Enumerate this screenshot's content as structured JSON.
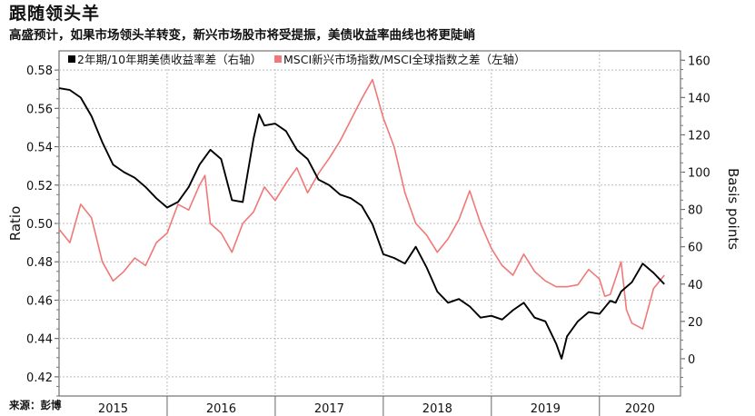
{
  "title": "跟随领头羊",
  "subtitle": "高盛预计，如果市场领头羊转变，新兴市场股市将受提振，美债收益率曲线也将更陡峭",
  "source": "来源：彭博",
  "chart_data": {
    "type": "line",
    "legend_position": "top",
    "grid": true,
    "x_ticks": [
      "2015",
      "2016",
      "2017",
      "2018",
      "2019",
      "2020"
    ],
    "left_axis": {
      "label": "Ratio",
      "ylim": [
        0.41,
        0.59
      ],
      "ticks": [
        "0.58",
        "0.56",
        "0.54",
        "0.52",
        "0.50",
        "0.48",
        "0.46",
        "0.44",
        "0.42"
      ]
    },
    "right_axis": {
      "label": "Basis points",
      "ylim": [
        -20,
        165
      ],
      "ticks": [
        "160",
        "140",
        "120",
        "100",
        "80",
        "60",
        "40",
        "20",
        "0"
      ]
    },
    "series": [
      {
        "name": "2年期/10年期美债收益率差（右轴）",
        "axis": "right",
        "color": "#000000",
        "x": [
          2015.0,
          2015.1,
          2015.2,
          2015.3,
          2015.4,
          2015.5,
          2015.6,
          2015.7,
          2015.8,
          2015.9,
          2016.0,
          2016.1,
          2016.2,
          2016.3,
          2016.4,
          2016.5,
          2016.6,
          2016.7,
          2016.8,
          2016.85,
          2016.9,
          2017.0,
          2017.1,
          2017.2,
          2017.3,
          2017.4,
          2017.5,
          2017.6,
          2017.7,
          2017.8,
          2017.9,
          2018.0,
          2018.1,
          2018.2,
          2018.3,
          2018.4,
          2018.5,
          2018.6,
          2018.7,
          2018.8,
          2018.9,
          2019.0,
          2019.1,
          2019.2,
          2019.3,
          2019.4,
          2019.5,
          2019.6,
          2019.65,
          2019.7,
          2019.8,
          2019.9,
          2020.0,
          2020.1,
          2020.15,
          2020.2,
          2020.3,
          2020.4,
          2020.5,
          2020.6
        ],
        "y": [
          145,
          144,
          140,
          130,
          116,
          104,
          100,
          97,
          92,
          86,
          81,
          84,
          92,
          104,
          112,
          107,
          85,
          84,
          118,
          131,
          125,
          126,
          122,
          112,
          107,
          96,
          93,
          88,
          86,
          82,
          72,
          56,
          54,
          51,
          60,
          49,
          36,
          30,
          32,
          28,
          22,
          23,
          21,
          26,
          30,
          22,
          20,
          8,
          0,
          12,
          20,
          25,
          24,
          31,
          30,
          36,
          41,
          51,
          46,
          40
        ]
      },
      {
        "name": "MSCI新兴市场指数/MSCI全球指数之差（左轴）",
        "axis": "left",
        "color": "#f07878",
        "x": [
          2015.0,
          2015.1,
          2015.2,
          2015.3,
          2015.4,
          2015.5,
          2015.6,
          2015.7,
          2015.8,
          2015.9,
          2016.0,
          2016.1,
          2016.2,
          2016.3,
          2016.35,
          2016.4,
          2016.5,
          2016.6,
          2016.7,
          2016.8,
          2016.9,
          2017.0,
          2017.1,
          2017.2,
          2017.3,
          2017.4,
          2017.5,
          2017.6,
          2017.7,
          2017.8,
          2017.9,
          2018.0,
          2018.1,
          2018.2,
          2018.3,
          2018.4,
          2018.5,
          2018.6,
          2018.7,
          2018.8,
          2018.9,
          2019.0,
          2019.1,
          2019.2,
          2019.3,
          2019.4,
          2019.5,
          2019.6,
          2019.7,
          2019.8,
          2019.9,
          2020.0,
          2020.05,
          2020.1,
          2020.2,
          2020.25,
          2020.3,
          2020.4,
          2020.5,
          2020.6
        ],
        "y": [
          0.497,
          0.49,
          0.51,
          0.503,
          0.48,
          0.47,
          0.475,
          0.482,
          0.478,
          0.49,
          0.495,
          0.51,
          0.507,
          0.52,
          0.525,
          0.5,
          0.495,
          0.485,
          0.5,
          0.506,
          0.519,
          0.512,
          0.521,
          0.529,
          0.516,
          0.526,
          0.534,
          0.543,
          0.554,
          0.565,
          0.575,
          0.555,
          0.54,
          0.516,
          0.5,
          0.494,
          0.485,
          0.492,
          0.502,
          0.517,
          0.5,
          0.487,
          0.478,
          0.473,
          0.484,
          0.475,
          0.47,
          0.467,
          0.467,
          0.468,
          0.476,
          0.471,
          0.462,
          0.463,
          0.48,
          0.455,
          0.448,
          0.445,
          0.466,
          0.473
        ]
      }
    ]
  }
}
